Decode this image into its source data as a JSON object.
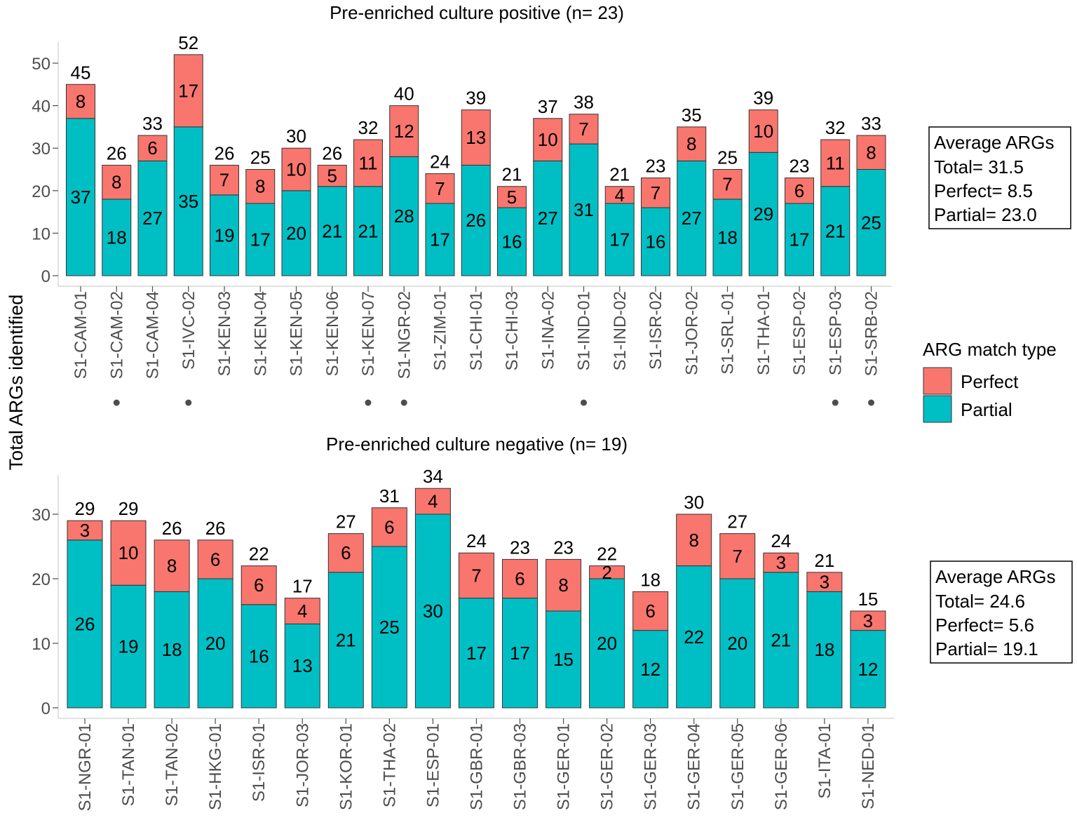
{
  "ylabel": "Total ARGs identified",
  "colors": {
    "perfect": "#F8766D",
    "partial": "#00BFC4",
    "marker": "#4d4d4d"
  },
  "legend": {
    "title": "ARG match type",
    "items": [
      {
        "label": "Perfect",
        "color": "#F8766D"
      },
      {
        "label": "Partial",
        "color": "#00BFC4"
      }
    ]
  },
  "chart_data": [
    {
      "type": "bar",
      "stacked": true,
      "title": "Pre-enriched culture positive (n= 23)",
      "ylim": [
        0,
        55
      ],
      "yticks": [
        0,
        10,
        20,
        30,
        40,
        50
      ],
      "categories": [
        "S1-CAM-01",
        "S1-CAM-02",
        "S1-CAM-04",
        "S1-IVC-02",
        "S1-KEN-03",
        "S1-KEN-04",
        "S1-KEN-05",
        "S1-KEN-06",
        "S1-KEN-07",
        "S1-NGR-02",
        "S1-ZIM-01",
        "S1-CHI-01",
        "S1-CHI-03",
        "S1-INA-02",
        "S1-IND-01",
        "S1-IND-02",
        "S1-ISR-02",
        "S1-JOR-02",
        "S1-SRL-01",
        "S1-THA-01",
        "S1-ESP-02",
        "S1-ESP-03",
        "S1-SRB-02"
      ],
      "marked": [
        false,
        true,
        false,
        true,
        false,
        false,
        false,
        false,
        true,
        true,
        false,
        false,
        false,
        false,
        true,
        false,
        false,
        false,
        false,
        false,
        false,
        true,
        true
      ],
      "series": [
        {
          "name": "Partial",
          "values": [
            37,
            18,
            27,
            35,
            19,
            17,
            20,
            21,
            21,
            28,
            17,
            26,
            16,
            27,
            31,
            17,
            16,
            27,
            18,
            29,
            17,
            21,
            25
          ]
        },
        {
          "name": "Perfect",
          "values": [
            8,
            8,
            6,
            17,
            7,
            8,
            10,
            5,
            11,
            12,
            7,
            13,
            5,
            10,
            7,
            4,
            7,
            8,
            7,
            10,
            6,
            11,
            8
          ]
        }
      ],
      "totals": [
        45,
        26,
        33,
        52,
        26,
        25,
        30,
        26,
        32,
        40,
        24,
        39,
        21,
        37,
        38,
        21,
        23,
        35,
        25,
        39,
        23,
        32,
        33
      ],
      "stats": {
        "line1": "Average ARGs",
        "line2": "Total= 31.5",
        "line3": "Perfect= 8.5",
        "line4": "Partial= 23.0"
      }
    },
    {
      "type": "bar",
      "stacked": true,
      "title": "Pre-enriched culture negative (n= 19)",
      "ylim": [
        0,
        36
      ],
      "yticks": [
        0,
        10,
        20,
        30
      ],
      "categories": [
        "S1-NGR-01",
        "S1-TAN-01",
        "S1-TAN-02",
        "S1-HKG-01",
        "S1-ISR-01",
        "S1-JOR-03",
        "S1-KOR-01",
        "S1-THA-02",
        "S1-ESP-01",
        "S1-GBR-01",
        "S1-GBR-03",
        "S1-GER-01",
        "S1-GER-02",
        "S1-GER-03",
        "S1-GER-04",
        "S1-GER-05",
        "S1-GER-06",
        "S1-ITA-01",
        "S1-NED-01"
      ],
      "marked": [
        false,
        false,
        false,
        false,
        false,
        false,
        false,
        false,
        false,
        false,
        false,
        false,
        false,
        false,
        false,
        false,
        false,
        false,
        false
      ],
      "series": [
        {
          "name": "Partial",
          "values": [
            26,
            19,
            18,
            20,
            16,
            13,
            21,
            25,
            30,
            17,
            17,
            15,
            20,
            12,
            22,
            20,
            21,
            18,
            12
          ]
        },
        {
          "name": "Perfect",
          "values": [
            3,
            10,
            8,
            6,
            6,
            4,
            6,
            6,
            4,
            7,
            6,
            8,
            2,
            6,
            8,
            7,
            3,
            3,
            3
          ]
        }
      ],
      "totals": [
        29,
        29,
        26,
        26,
        22,
        17,
        27,
        31,
        34,
        24,
        23,
        23,
        22,
        18,
        30,
        27,
        24,
        21,
        15
      ],
      "stats": {
        "line1": "Average ARGs",
        "line2": "Total= 24.6",
        "line3": "Perfect= 5.6",
        "line4": "Partial= 19.1"
      }
    }
  ]
}
